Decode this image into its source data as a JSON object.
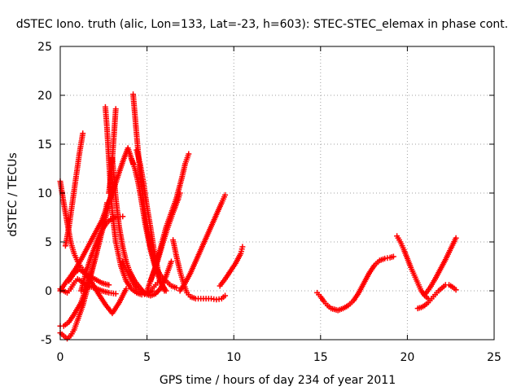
{
  "chart_data": {
    "type": "scatter",
    "title": "dSTEC Iono. truth (alic, Lon=133, Lat=-23, h=603): STEC-STEC_elemax in phase cont.",
    "xlabel": "GPS time / hours of day 234 of year 2011",
    "ylabel": "dSTEC  / TECUs",
    "xlim": [
      0,
      25
    ],
    "ylim": [
      -5,
      25
    ],
    "xticks": [
      0,
      5,
      10,
      15,
      20,
      25
    ],
    "yticks": [
      -5,
      0,
      5,
      10,
      15,
      20,
      25
    ],
    "grid": true,
    "marker": "plus",
    "color": "#ff0000",
    "series": [
      {
        "x": [
          0.0,
          0.2,
          0.4,
          0.6,
          0.8,
          1.0,
          1.2,
          1.4,
          1.6,
          1.8,
          2.0,
          2.2,
          2.4,
          2.6,
          2.8
        ],
        "y": [
          11.2,
          9.0,
          7.0,
          5.0,
          3.8,
          3.0,
          2.4,
          2.0,
          1.6,
          1.4,
          1.2,
          1.0,
          0.8,
          0.7,
          0.6
        ]
      },
      {
        "x": [
          0.3,
          0.5,
          0.7,
          0.9,
          1.1,
          1.3
        ],
        "y": [
          4.6,
          6.5,
          9.0,
          11.5,
          14.0,
          16.1
        ]
      },
      {
        "x": [
          0.0,
          0.3,
          0.6,
          0.9,
          1.2,
          1.5,
          1.8,
          2.1,
          2.4,
          2.7,
          3.0,
          3.3,
          3.6,
          3.9,
          4.2
        ],
        "y": [
          0.0,
          0.8,
          1.5,
          2.3,
          3.2,
          4.2,
          5.2,
          6.2,
          7.2,
          8.6,
          10.0,
          11.6,
          13.2,
          14.6,
          13.0
        ]
      },
      {
        "x": [
          0.0,
          0.2,
          0.5,
          0.8,
          1.2,
          1.6,
          2.0,
          2.4,
          2.7
        ],
        "y": [
          -3.6,
          -3.6,
          -3.2,
          -2.4,
          -1.2,
          0.8,
          3.2,
          6.2,
          9.0
        ]
      },
      {
        "x": [
          0.0,
          0.2,
          0.4,
          0.6,
          0.8,
          1.0,
          1.3,
          1.6,
          2.0,
          2.4,
          2.8,
          3.0
        ],
        "y": [
          -4.3,
          -4.6,
          -4.9,
          -4.6,
          -4.0,
          -3.0,
          -1.5,
          0.5,
          3.2,
          6.0,
          8.8,
          10.5
        ]
      },
      {
        "x": [
          0.0,
          0.2,
          0.4,
          0.6,
          0.8,
          1.0,
          1.2,
          1.4,
          1.6,
          1.8,
          2.0,
          2.4,
          2.8,
          3.2
        ],
        "y": [
          0.2,
          0.0,
          -0.2,
          0.2,
          0.8,
          1.2,
          1.0,
          0.7,
          0.5,
          0.4,
          0.3,
          0.0,
          -0.2,
          -0.3
        ]
      },
      {
        "x": [
          0.5,
          0.8,
          1.1,
          1.4,
          1.8,
          2.2,
          2.6,
          3.0,
          3.4,
          3.8
        ],
        "y": [
          1.0,
          1.8,
          2.2,
          1.8,
          0.9,
          -0.3,
          -1.4,
          -2.3,
          -1.2,
          0.2
        ]
      },
      {
        "x": [
          1.2,
          1.5,
          1.8,
          2.1,
          2.4,
          2.7,
          3.0,
          3.3,
          3.6
        ],
        "y": [
          0.0,
          2.0,
          3.6,
          5.0,
          6.2,
          7.0,
          7.4,
          7.6,
          7.6
        ]
      },
      {
        "x": [
          2.6,
          2.7,
          2.8,
          2.9,
          3.0,
          3.2,
          3.5,
          3.8,
          4.1,
          4.4,
          4.7,
          5.0,
          5.3
        ],
        "y": [
          18.8,
          16.5,
          13.5,
          10.5,
          8.0,
          5.0,
          2.5,
          1.0,
          0.2,
          -0.2,
          -0.4,
          -0.3,
          0.0
        ]
      },
      {
        "x": [
          3.2,
          3.1,
          3.0,
          2.9,
          2.8
        ],
        "y": [
          18.6,
          16.0,
          13.5,
          11.5,
          10.0
        ]
      },
      {
        "x": [
          3.0,
          3.2,
          3.4,
          3.6,
          3.8,
          4.0,
          4.3,
          4.6,
          4.9,
          5.2,
          5.5,
          5.8,
          6.1,
          6.4
        ],
        "y": [
          13.6,
          9.5,
          6.5,
          4.5,
          3.0,
          2.0,
          1.0,
          0.3,
          -0.3,
          -0.5,
          -0.3,
          0.3,
          1.5,
          3.0
        ]
      },
      {
        "x": [
          4.2,
          4.4,
          4.6,
          4.8,
          5.0,
          5.2,
          5.5,
          5.8,
          6.1,
          6.4,
          6.7
        ],
        "y": [
          20.1,
          16.0,
          12.0,
          9.0,
          6.5,
          4.5,
          2.5,
          1.5,
          1.0,
          0.5,
          0.3
        ]
      },
      {
        "x": [
          4.4,
          4.6,
          4.8,
          5.0,
          5.2,
          5.4,
          5.7,
          6.0
        ],
        "y": [
          14.4,
          13.0,
          11.0,
          8.6,
          6.5,
          4.2,
          1.5,
          0.0
        ]
      },
      {
        "x": [
          4.1,
          4.3,
          4.5,
          4.7,
          4.9,
          5.2,
          5.5,
          5.8,
          6.1
        ],
        "y": [
          13.5,
          12.5,
          11.0,
          9.0,
          6.8,
          4.2,
          2.2,
          0.8,
          0.0
        ]
      },
      {
        "x": [
          3.6,
          3.8,
          4.0,
          4.2,
          4.4,
          4.6,
          4.8,
          5.0,
          5.2,
          5.4,
          5.6
        ],
        "y": [
          3.0,
          2.2,
          1.4,
          0.8,
          0.3,
          0.0,
          -0.2,
          -0.2,
          0.0,
          0.4,
          0.8
        ]
      },
      {
        "x": [
          5.2,
          5.5,
          5.8,
          6.1,
          6.4,
          6.7,
          7.0,
          7.2,
          7.4
        ],
        "y": [
          1.0,
          2.5,
          4.5,
          6.5,
          8.0,
          9.5,
          11.5,
          13.0,
          14.0
        ]
      },
      {
        "x": [
          5.0,
          5.3,
          5.6,
          5.9,
          6.2,
          6.5,
          6.8,
          6.9
        ],
        "y": [
          0.0,
          1.5,
          3.0,
          4.8,
          6.5,
          8.0,
          9.4,
          10.0
        ]
      },
      {
        "x": [
          6.5,
          6.7,
          6.9,
          7.1,
          7.3,
          7.5,
          7.8,
          8.1,
          8.4,
          8.7,
          9.0,
          9.3,
          9.5
        ],
        "y": [
          5.2,
          3.5,
          2.0,
          0.8,
          -0.2,
          -0.6,
          -0.8,
          -0.8,
          -0.8,
          -0.8,
          -0.9,
          -0.8,
          -0.5
        ]
      },
      {
        "x": [
          6.9,
          7.2,
          7.5,
          7.8,
          8.1,
          8.4,
          8.7,
          9.0,
          9.3,
          9.5
        ],
        "y": [
          0.0,
          0.8,
          1.8,
          3.0,
          4.2,
          5.4,
          6.6,
          7.8,
          9.0,
          9.8
        ]
      },
      {
        "x": [
          9.2,
          9.5,
          9.8,
          10.1,
          10.4,
          10.5
        ],
        "y": [
          0.5,
          1.2,
          2.0,
          2.8,
          3.8,
          4.5
        ]
      },
      {
        "x": [
          14.8,
          15.0,
          15.2,
          15.4,
          15.6,
          15.8,
          16.0,
          16.3,
          16.6,
          16.9,
          17.2,
          17.5,
          17.8,
          18.1,
          18.4,
          18.7,
          19.0,
          19.2
        ],
        "y": [
          -0.2,
          -0.6,
          -1.1,
          -1.5,
          -1.8,
          -1.9,
          -2.0,
          -1.8,
          -1.5,
          -1.0,
          -0.2,
          0.8,
          1.8,
          2.6,
          3.1,
          3.3,
          3.4,
          3.5
        ]
      },
      {
        "x": [
          19.4,
          19.6,
          19.8,
          20.0,
          20.2,
          20.4,
          20.6,
          20.8,
          21.0,
          21.2
        ],
        "y": [
          5.6,
          5.0,
          4.2,
          3.3,
          2.4,
          1.6,
          0.8,
          0.0,
          -0.5,
          -0.8
        ]
      },
      {
        "x": [
          20.6,
          20.8,
          21.0,
          21.2,
          21.4,
          21.6,
          21.8,
          22.0,
          22.2,
          22.4,
          22.6,
          22.8
        ],
        "y": [
          -1.8,
          -1.7,
          -1.5,
          -1.2,
          -0.8,
          -0.4,
          0.0,
          0.3,
          0.6,
          0.6,
          0.4,
          0.1
        ]
      },
      {
        "x": [
          21.0,
          21.3,
          21.6,
          21.9,
          22.2,
          22.5,
          22.8
        ],
        "y": [
          -0.4,
          0.3,
          1.2,
          2.2,
          3.2,
          4.3,
          5.4
        ]
      }
    ]
  }
}
